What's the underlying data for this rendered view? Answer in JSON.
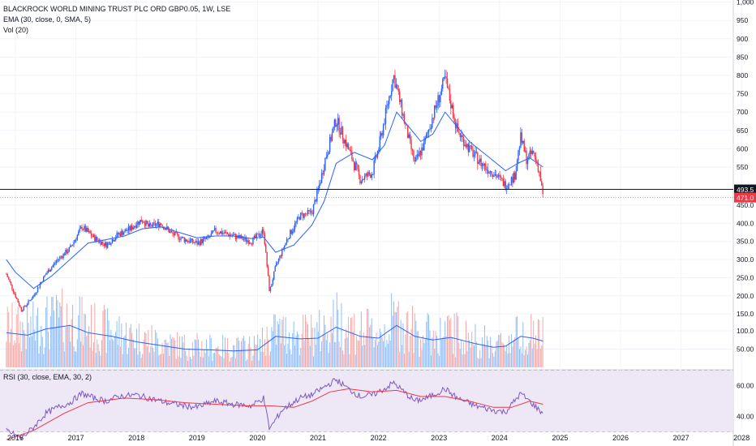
{
  "header": {
    "title": "BLACKROCK WORLD MINING TRUST PLC ORD GBP0.05, 1W, LSE",
    "ema_label": "EMA (30, close, 0, SMA, 5)",
    "vol_label": "Vol (20)",
    "rsi_label": "RSI (30, close, EMA, 30, 2)"
  },
  "colors": {
    "up": "#2962ff",
    "down": "#f23645",
    "ema": "#2962ff",
    "volume_up": "#90bff9",
    "volume_down": "#f7a9a7",
    "volume_ma": "#2962ff",
    "rsi": "#7e57c2",
    "rsi_ma": "#f23645",
    "rsi_band": "#ede7f6",
    "last_price_bg": "#f23645",
    "crosshair_bg": "#131722"
  },
  "chart_data": {
    "type": "candlestick",
    "title": "BLACKROCK WORLD MINING TRUST PLC ORD GBP0.05, 1W, LSE",
    "x_ticks": [
      "2016",
      "2017",
      "2018",
      "2019",
      "2020",
      "2021",
      "2022",
      "2023",
      "2024",
      "2025",
      "2026",
      "2027",
      "2028"
    ],
    "y_ticks": [
      "1,000",
      "950",
      "900",
      "850",
      "800",
      "750",
      "700",
      "650",
      "600",
      "550",
      "450.0",
      "400.0",
      "350.0",
      "300.0",
      "250.0",
      "200.0",
      "150.0",
      "100.0",
      "50.00"
    ],
    "rsi_ticks": [
      "60.00",
      "40.00"
    ],
    "last_price": "471.0",
    "crosshair_price": "493.5",
    "price_path": [
      [
        2015.85,
        260
      ],
      [
        2016.0,
        200
      ],
      [
        2016.1,
        160
      ],
      [
        2016.3,
        200
      ],
      [
        2016.5,
        260
      ],
      [
        2016.7,
        300
      ],
      [
        2016.9,
        330
      ],
      [
        2017.0,
        360
      ],
      [
        2017.1,
        390
      ],
      [
        2017.3,
        360
      ],
      [
        2017.5,
        340
      ],
      [
        2017.7,
        370
      ],
      [
        2017.9,
        385
      ],
      [
        2018.0,
        400
      ],
      [
        2018.1,
        410
      ],
      [
        2018.2,
        390
      ],
      [
        2018.3,
        395
      ],
      [
        2018.4,
        400
      ],
      [
        2018.6,
        370
      ],
      [
        2018.8,
        355
      ],
      [
        2019.0,
        345
      ],
      [
        2019.2,
        360
      ],
      [
        2019.3,
        380
      ],
      [
        2019.5,
        370
      ],
      [
        2019.7,
        360
      ],
      [
        2019.9,
        350
      ],
      [
        2020.0,
        365
      ],
      [
        2020.1,
        380
      ],
      [
        2020.2,
        210
      ],
      [
        2020.3,
        280
      ],
      [
        2020.5,
        360
      ],
      [
        2020.7,
        420
      ],
      [
        2020.9,
        430
      ],
      [
        2021.0,
        490
      ],
      [
        2021.1,
        560
      ],
      [
        2021.3,
        680
      ],
      [
        2021.5,
        600
      ],
      [
        2021.7,
        520
      ],
      [
        2021.9,
        540
      ],
      [
        2022.0,
        600
      ],
      [
        2022.15,
        720
      ],
      [
        2022.25,
        800
      ],
      [
        2022.45,
        660
      ],
      [
        2022.6,
        560
      ],
      [
        2022.75,
        610
      ],
      [
        2022.9,
        690
      ],
      [
        2023.0,
        740
      ],
      [
        2023.1,
        790
      ],
      [
        2023.3,
        650
      ],
      [
        2023.5,
        600
      ],
      [
        2023.7,
        560
      ],
      [
        2023.9,
        540
      ],
      [
        2024.1,
        505
      ],
      [
        2024.25,
        530
      ],
      [
        2024.35,
        630
      ],
      [
        2024.45,
        570
      ],
      [
        2024.55,
        590
      ],
      [
        2024.65,
        550
      ],
      [
        2024.72,
        471
      ]
    ],
    "ema_path": [
      [
        2015.85,
        300
      ],
      [
        2016.0,
        265
      ],
      [
        2016.3,
        220
      ],
      [
        2016.6,
        255
      ],
      [
        2016.9,
        300
      ],
      [
        2017.2,
        345
      ],
      [
        2017.5,
        355
      ],
      [
        2017.8,
        365
      ],
      [
        2018.1,
        385
      ],
      [
        2018.4,
        390
      ],
      [
        2018.7,
        375
      ],
      [
        2019.0,
        360
      ],
      [
        2019.3,
        365
      ],
      [
        2019.6,
        365
      ],
      [
        2019.9,
        358
      ],
      [
        2020.1,
        362
      ],
      [
        2020.3,
        320
      ],
      [
        2020.6,
        340
      ],
      [
        2020.9,
        395
      ],
      [
        2021.1,
        460
      ],
      [
        2021.3,
        560
      ],
      [
        2021.6,
        590
      ],
      [
        2021.9,
        570
      ],
      [
        2022.1,
        610
      ],
      [
        2022.3,
        700
      ],
      [
        2022.5,
        660
      ],
      [
        2022.7,
        620
      ],
      [
        2022.9,
        640
      ],
      [
        2023.1,
        700
      ],
      [
        2023.3,
        660
      ],
      [
        2023.5,
        620
      ],
      [
        2023.8,
        580
      ],
      [
        2024.1,
        545
      ],
      [
        2024.3,
        560
      ],
      [
        2024.5,
        575
      ],
      [
        2024.72,
        550
      ]
    ],
    "volume_ma_path": [
      [
        2015.85,
        95
      ],
      [
        2016.2,
        88
      ],
      [
        2016.5,
        105
      ],
      [
        2016.9,
        115
      ],
      [
        2017.2,
        95
      ],
      [
        2017.6,
        85
      ],
      [
        2018.0,
        70
      ],
      [
        2018.4,
        60
      ],
      [
        2018.8,
        50
      ],
      [
        2019.2,
        48
      ],
      [
        2019.6,
        45
      ],
      [
        2020.0,
        48
      ],
      [
        2020.3,
        85
      ],
      [
        2020.7,
        78
      ],
      [
        2021.0,
        80
      ],
      [
        2021.3,
        110
      ],
      [
        2021.7,
        85
      ],
      [
        2022.0,
        80
      ],
      [
        2022.3,
        115
      ],
      [
        2022.6,
        85
      ],
      [
        2022.9,
        75
      ],
      [
        2023.2,
        82
      ],
      [
        2023.6,
        65
      ],
      [
        2023.9,
        55
      ],
      [
        2024.1,
        58
      ],
      [
        2024.35,
        85
      ],
      [
        2024.55,
        80
      ],
      [
        2024.72,
        72
      ]
    ],
    "rsi_path": [
      [
        2015.85,
        31
      ],
      [
        2016.0,
        28
      ],
      [
        2016.1,
        26
      ],
      [
        2016.3,
        33
      ],
      [
        2016.5,
        42
      ],
      [
        2016.7,
        46
      ],
      [
        2016.9,
        49
      ],
      [
        2017.1,
        55
      ],
      [
        2017.3,
        52
      ],
      [
        2017.5,
        50
      ],
      [
        2017.7,
        53
      ],
      [
        2018.0,
        54
      ],
      [
        2018.2,
        52
      ],
      [
        2018.5,
        49
      ],
      [
        2018.8,
        47
      ],
      [
        2019.0,
        46
      ],
      [
        2019.3,
        50
      ],
      [
        2019.6,
        48
      ],
      [
        2019.9,
        47
      ],
      [
        2020.1,
        52
      ],
      [
        2020.2,
        32
      ],
      [
        2020.4,
        44
      ],
      [
        2020.7,
        52
      ],
      [
        2020.9,
        54
      ],
      [
        2021.1,
        59
      ],
      [
        2021.3,
        64
      ],
      [
        2021.5,
        58
      ],
      [
        2021.7,
        53
      ],
      [
        2021.9,
        54
      ],
      [
        2022.1,
        58
      ],
      [
        2022.25,
        62
      ],
      [
        2022.45,
        55
      ],
      [
        2022.6,
        50
      ],
      [
        2022.8,
        52
      ],
      [
        2023.0,
        56
      ],
      [
        2023.1,
        58
      ],
      [
        2023.3,
        52
      ],
      [
        2023.6,
        47
      ],
      [
        2023.9,
        44
      ],
      [
        2024.1,
        43
      ],
      [
        2024.35,
        55
      ],
      [
        2024.55,
        48
      ],
      [
        2024.72,
        42
      ]
    ],
    "rsi_ma_path": [
      [
        2015.85,
        25
      ],
      [
        2016.3,
        31
      ],
      [
        2016.8,
        42
      ],
      [
        2017.2,
        49
      ],
      [
        2017.8,
        52
      ],
      [
        2018.3,
        51
      ],
      [
        2018.8,
        49
      ],
      [
        2019.3,
        48
      ],
      [
        2019.8,
        47
      ],
      [
        2020.2,
        47
      ],
      [
        2020.6,
        46
      ],
      [
        2020.9,
        50
      ],
      [
        2021.2,
        56
      ],
      [
        2021.5,
        58
      ],
      [
        2021.9,
        56
      ],
      [
        2022.3,
        57
      ],
      [
        2022.7,
        53
      ],
      [
        2023.1,
        53
      ],
      [
        2023.5,
        50
      ],
      [
        2023.9,
        46
      ],
      [
        2024.2,
        46
      ],
      [
        2024.5,
        50
      ],
      [
        2024.72,
        48
      ]
    ]
  }
}
